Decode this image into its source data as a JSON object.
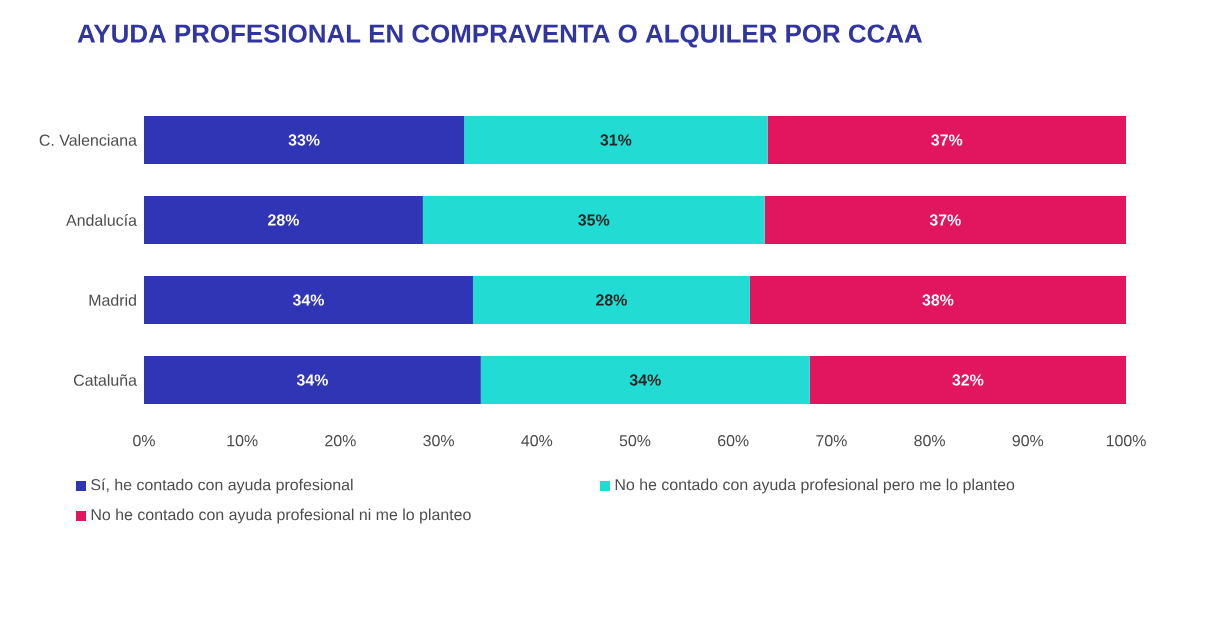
{
  "chart_data": {
    "type": "bar",
    "orientation": "horizontal",
    "stacked": true,
    "title": "AYUDA PROFESIONAL EN COMPRAVENTA O ALQUILER POR CCAA",
    "categories": [
      "C. Valenciana",
      "Andalucía",
      "Madrid",
      "Cataluña"
    ],
    "series": [
      {
        "name": "Sí, he contado con ayuda profesional",
        "color": "#3035b5",
        "values": [
          32.6,
          28.4,
          33.5,
          34.3
        ],
        "value_labels": [
          "33%",
          "28%",
          "34%",
          "34%"
        ]
      },
      {
        "name": "No he contado con ayuda profesional pero me lo planteo",
        "color": "#22dbd2",
        "values": [
          30.9,
          34.8,
          28.2,
          33.5
        ],
        "value_labels": [
          "31%",
          "35%",
          "28%",
          "34%"
        ]
      },
      {
        "name": "No he contado con ayuda profesional ni me lo planteo",
        "color": "#e2165e",
        "values": [
          36.5,
          36.8,
          38.3,
          32.2
        ],
        "value_labels": [
          "37%",
          "37%",
          "38%",
          "32%"
        ]
      }
    ],
    "xlim": [
      0,
      100
    ],
    "xticks": [
      {
        "value": 0,
        "label": "0%"
      },
      {
        "value": 10,
        "label": "10%"
      },
      {
        "value": 20,
        "label": "20%"
      },
      {
        "value": 30,
        "label": "30%"
      },
      {
        "value": 40,
        "label": "40%"
      },
      {
        "value": 50,
        "label": "50%"
      },
      {
        "value": 60,
        "label": "60%"
      },
      {
        "value": 70,
        "label": "70%"
      },
      {
        "value": 80,
        "label": "80%"
      },
      {
        "value": 90,
        "label": "90%"
      },
      {
        "value": 100,
        "label": "100%"
      }
    ],
    "legend": "bottom"
  }
}
